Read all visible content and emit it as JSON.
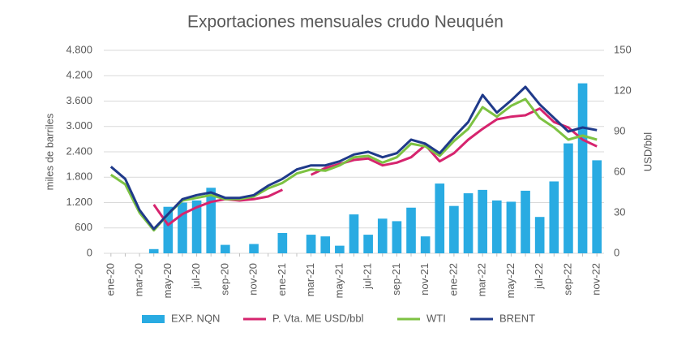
{
  "chart_data": {
    "type": "bar_line",
    "title": "Exportaciones mensuales crudo Neuquén",
    "y_label": "miles de barriles",
    "y2_label": "USD/bbl",
    "categories": [
      "ene-20",
      null,
      "mar-20",
      null,
      "may-20",
      null,
      "jul-20",
      null,
      "sep-20",
      null,
      "nov-20",
      null,
      "ene-21",
      null,
      "mar-21",
      null,
      "may-21",
      null,
      "jul-21",
      null,
      "sep-21",
      null,
      "nov-21",
      null,
      "ene-22",
      null,
      "mar-22",
      null,
      "may-22",
      null,
      "jul-22",
      null,
      "sep-22",
      null,
      "nov-22"
    ],
    "ylim": [
      0,
      4800
    ],
    "yticks": [
      0,
      600,
      {
        "value": 1200,
        "label": "1.200"
      },
      {
        "value": 1800,
        "label": "1.800"
      },
      {
        "value": 2400,
        "label": "2.400"
      },
      {
        "value": 3000,
        "label": "3.000"
      },
      {
        "value": 3600,
        "label": "3.600"
      },
      {
        "value": 4200,
        "label": "4.200"
      },
      {
        "value": 4800,
        "label": "4.800"
      }
    ],
    "y2lim": [
      0,
      150
    ],
    "y2ticks": [
      0,
      30,
      60,
      90,
      120,
      150
    ],
    "grid": true,
    "series": [
      {
        "name": "EXP. NQN",
        "type": "bar",
        "color": "#29abe2",
        "values": [
          0,
          0,
          0,
          100,
          1100,
          1200,
          1250,
          1550,
          200,
          0,
          220,
          0,
          480,
          0,
          440,
          400,
          180,
          920,
          440,
          820,
          760,
          1080,
          400,
          1650,
          1120,
          1420,
          1500,
          1250,
          1220,
          1480,
          860,
          1700,
          2600,
          4020,
          2200
        ]
      },
      {
        "name": "P. Vta. ME USD/bbl",
        "type": "line",
        "axis": "y2",
        "color": "#d6246e",
        "values": [
          null,
          null,
          null,
          36,
          21,
          29,
          34,
          38,
          40,
          39,
          40,
          42,
          47,
          null,
          58,
          63,
          66,
          69,
          70,
          65,
          67,
          71,
          80,
          68,
          74,
          84,
          92,
          99,
          101,
          102,
          107,
          97,
          93,
          84,
          79
        ]
      },
      {
        "name": "WTI",
        "type": "line",
        "axis": "y2",
        "color": "#7dc242",
        "values": [
          58,
          51,
          30,
          17,
          29,
          39,
          41,
          43,
          40,
          40,
          42,
          48,
          52,
          59,
          62,
          61,
          65,
          71,
          72,
          67,
          71,
          81,
          79,
          72,
          83,
          92,
          108,
          101,
          109,
          114,
          100,
          93,
          84,
          87,
          84
        ]
      },
      {
        "name": "BRENT",
        "type": "line",
        "axis": "y2",
        "color": "#1f3a8a",
        "values": [
          64,
          55,
          32,
          18,
          29,
          40,
          43,
          45,
          41,
          41,
          43,
          50,
          55,
          62,
          65,
          65,
          68,
          73,
          75,
          71,
          74,
          84,
          81,
          74,
          86,
          97,
          117,
          104,
          113,
          123,
          110,
          100,
          90,
          93,
          91
        ]
      }
    ]
  }
}
